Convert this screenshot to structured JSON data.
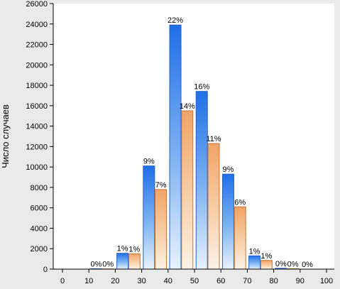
{
  "chart_data": {
    "type": "bar",
    "ylabel": "Число случаев",
    "xlabel": "",
    "x_ticks": [
      "0",
      "10",
      "20",
      "30",
      "40",
      "50",
      "60",
      "70",
      "80",
      "90",
      "100"
    ],
    "y_ticks": [
      "0",
      "2000",
      "4000",
      "6000",
      "8000",
      "10000",
      "12000",
      "14000",
      "16000",
      "18000",
      "20000",
      "22000",
      "24000",
      "26000"
    ],
    "ylim": [
      0,
      26000
    ],
    "xlim": [
      0,
      100
    ],
    "bin_width": 10,
    "grid": false,
    "legend": "none",
    "series": [
      {
        "color": "#3a7fe0",
        "bins": [
          {
            "x": 15,
            "value": 30,
            "label": "0%"
          },
          {
            "x": 25,
            "value": 1550,
            "label": "1%"
          },
          {
            "x": 35,
            "value": 10100,
            "label": "9%"
          },
          {
            "x": 45,
            "value": 23900,
            "label": "22%"
          },
          {
            "x": 55,
            "value": 17400,
            "label": "16%"
          },
          {
            "x": 65,
            "value": 9300,
            "label": "9%"
          },
          {
            "x": 75,
            "value": 1300,
            "label": "1%"
          },
          {
            "x": 85,
            "value": 80,
            "label": "0%"
          },
          {
            "x": 95,
            "value": 0,
            "label": "0%"
          }
        ]
      },
      {
        "color": "#e0925a",
        "bins": [
          {
            "x": 15,
            "value": 20,
            "label": "0%"
          },
          {
            "x": 25,
            "value": 1500,
            "label": "1%"
          },
          {
            "x": 35,
            "value": 7800,
            "label": "7%"
          },
          {
            "x": 45,
            "value": 15500,
            "label": "14%"
          },
          {
            "x": 55,
            "value": 12300,
            "label": "11%"
          },
          {
            "x": 65,
            "value": 6100,
            "label": "6%"
          },
          {
            "x": 75,
            "value": 850,
            "label": "1%"
          },
          {
            "x": 85,
            "value": 40,
            "label": "0%"
          }
        ]
      }
    ]
  }
}
